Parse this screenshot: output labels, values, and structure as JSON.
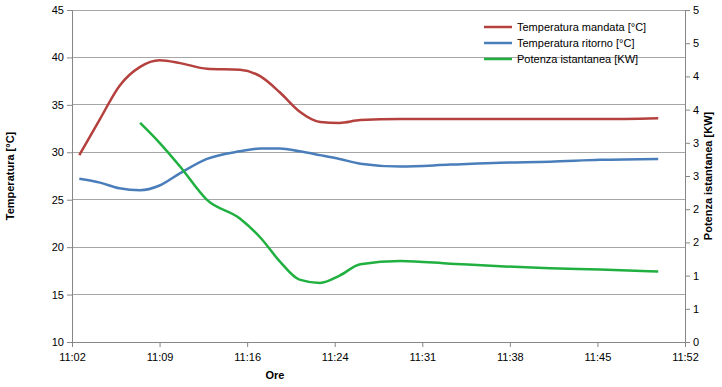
{
  "chart_data": {
    "type": "line",
    "x_label": "Ore",
    "y_label": "Temperatura [°C]",
    "y2_label": "Potenza istantanea [KW]",
    "x": [
      663.0,
      664.7,
      666.3,
      668.0,
      669.6,
      671.3,
      673.5,
      676.2,
      677.9,
      679.5,
      681.1,
      682.8,
      684.4,
      686.1,
      689.4,
      693.5,
      697.6,
      701.7,
      705.8,
      710.6
    ],
    "series": [
      {
        "name": "Temperatura mandata [°C]",
        "color": "#b5413e",
        "values": [
          29.7,
          33.5,
          37.0,
          39.0,
          39.7,
          39.4,
          38.8,
          38.7,
          38.0,
          36.3,
          34.3,
          33.2,
          33.1,
          33.4,
          33.5,
          33.5,
          33.5,
          33.5,
          33.5,
          33.6
        ]
      },
      {
        "name": "Temperatura ritorno [°C]",
        "color": "#4a7ebb",
        "values": [
          27.2,
          26.8,
          26.2,
          26.0,
          26.5,
          27.8,
          29.3,
          30.1,
          30.4,
          30.4,
          30.1,
          29.7,
          29.3,
          28.8,
          28.5,
          28.7,
          28.9,
          29.0,
          29.2,
          29.3
        ]
      },
      {
        "name": "Potenza istantanea [KW]",
        "color": "#20b040",
        "axis": "y2",
        "values": [
          null,
          null,
          null,
          3.3,
          3.0,
          2.64,
          2.14,
          1.86,
          1.57,
          1.21,
          0.94,
          0.89,
          1.0,
          1.17,
          1.22,
          1.18,
          1.14,
          1.11,
          1.09,
          1.06
        ]
      }
    ],
    "xlim": [
      662.4,
      712.8
    ],
    "xticks": [
      {
        "value": 662.4,
        "label": "11:02"
      },
      {
        "value": 669.6,
        "label": "11:09"
      },
      {
        "value": 676.8,
        "label": "11:16"
      },
      {
        "value": 684.0,
        "label": "11:24"
      },
      {
        "value": 691.2,
        "label": "11:31"
      },
      {
        "value": 698.4,
        "label": "11:38"
      },
      {
        "value": 705.6,
        "label": "11:45"
      },
      {
        "value": 712.8,
        "label": "11:52"
      }
    ],
    "ylim": [
      10,
      45
    ],
    "yticks": [
      10,
      15,
      20,
      25,
      30,
      35,
      40,
      45
    ],
    "y2lim": [
      0,
      5
    ],
    "y2ticks": [
      0,
      {
        "value": 0.5,
        "label": "1"
      },
      1,
      {
        "value": 1.5,
        "label": "2"
      },
      2,
      {
        "value": 2.5,
        "label": "3"
      },
      3,
      {
        "value": 3.5,
        "label": "4"
      },
      4,
      {
        "value": 4.5,
        "label": "5"
      },
      5
    ],
    "grid": true,
    "legend": "top-right"
  }
}
